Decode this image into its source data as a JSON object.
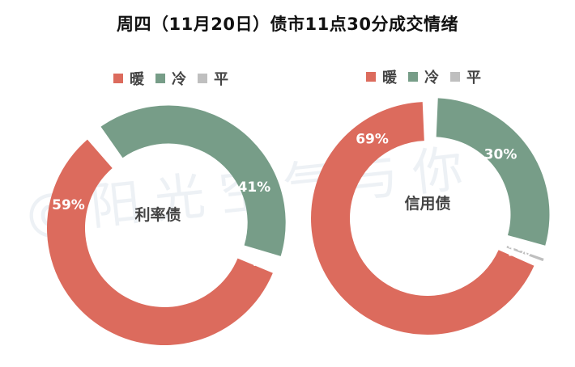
{
  "title": "周四（11月20日）债市11点30分成交情绪",
  "watermark": "@阳光空气与你",
  "colors": {
    "warm": "#DC6B5D",
    "cold": "#779D88",
    "flat": "#BFBFBF"
  },
  "legend": [
    {
      "label": "暖",
      "color": "#DC6B5D"
    },
    {
      "label": "冷",
      "color": "#779D88"
    },
    {
      "label": "平",
      "color": "#BFBFBF"
    }
  ],
  "chart_data": [
    {
      "type": "pie",
      "subtype": "donut",
      "center_label": "利率债",
      "categories": [
        "暖",
        "冷",
        "平"
      ],
      "values": [
        59,
        41,
        0
      ],
      "value_labels": [
        "59%",
        "41%",
        "%"
      ],
      "legend_position": "top"
    },
    {
      "type": "pie",
      "subtype": "donut",
      "center_label": "信用债",
      "categories": [
        "暖",
        "冷",
        "平"
      ],
      "values": [
        69,
        30,
        1
      ],
      "value_labels": [
        "69%",
        "30%",
        "1%"
      ],
      "legend_position": "top"
    }
  ]
}
